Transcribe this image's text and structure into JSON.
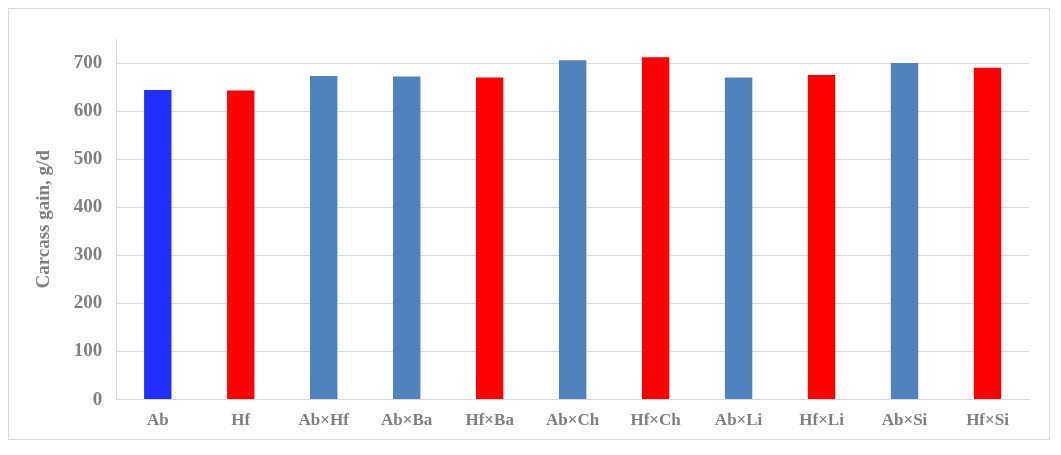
{
  "chart_data": {
    "type": "bar",
    "ylabel": "Carcass gain, g/d",
    "categories": [
      "Ab",
      "Hf",
      "Ab×Hf",
      "Ab×Ba",
      "Hf×Ba",
      "Ab×Ch",
      "Hf×Ch",
      "Ab×Li",
      "Hf×Li",
      "Ab×Si",
      "Hf×Si"
    ],
    "values": [
      644,
      643,
      673,
      672,
      670,
      706,
      712,
      670,
      675,
      700,
      690
    ],
    "colors": [
      "#1f2fff",
      "#ff0000",
      "#4f81bd",
      "#4f81bd",
      "#ff0000",
      "#4f81bd",
      "#ff0000",
      "#4f81bd",
      "#ff0000",
      "#4f81bd",
      "#ff0000"
    ],
    "ylim": [
      0,
      750
    ],
    "yticks": [
      0,
      100,
      200,
      300,
      400,
      500,
      600,
      700
    ],
    "grid": "y"
  }
}
